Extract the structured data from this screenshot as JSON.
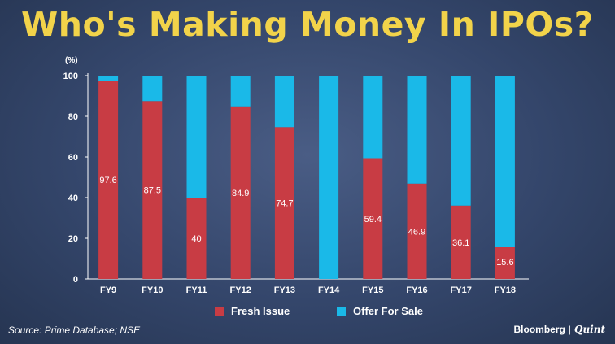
{
  "title": "Who's Making Money In IPOs?",
  "source": "Source: Prime Database; NSE",
  "brand": {
    "name": "Bloomberg",
    "sub": "Quint"
  },
  "colors": {
    "fresh": "#c83c44",
    "ofs": "#1ab9e8",
    "title": "#f2d34a"
  },
  "chart_data": {
    "type": "bar",
    "stacked": true,
    "unit_label": "(%)",
    "categories": [
      "FY9",
      "FY10",
      "FY11",
      "FY12",
      "FY13",
      "FY14",
      "FY15",
      "FY16",
      "FY17",
      "FY18"
    ],
    "series": [
      {
        "name": "Fresh Issue",
        "values": [
          97.6,
          87.5,
          40,
          84.9,
          74.7,
          0,
          59.4,
          46.9,
          36.1,
          15.6
        ]
      },
      {
        "name": "Offer For Sale",
        "values": [
          2.4,
          12.5,
          60,
          15.1,
          25.3,
          100,
          40.6,
          53.1,
          63.9,
          84.4
        ]
      }
    ],
    "data_labels": [
      "97.6",
      "87.5",
      "40",
      "84.9",
      "74.7",
      "",
      "59.4",
      "46.9",
      "36.1",
      "15.6"
    ],
    "yticks": [
      0,
      20,
      40,
      60,
      80,
      100
    ],
    "ylim": [
      0,
      100
    ],
    "grid": false,
    "legend": "bottom"
  }
}
